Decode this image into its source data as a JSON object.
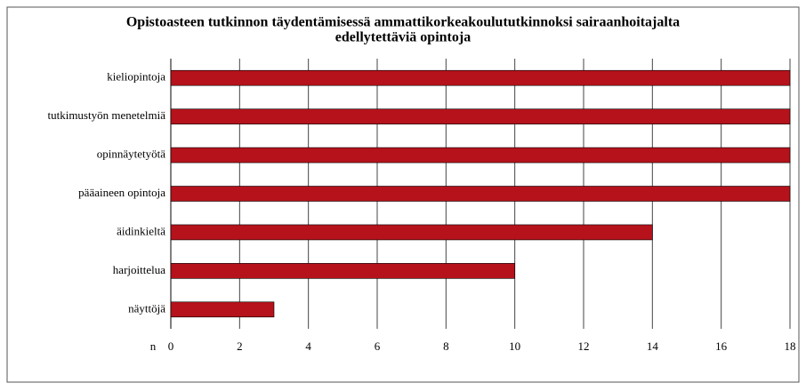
{
  "chart_data": {
    "type": "bar",
    "title": [
      "Opistoasteen tutkinnon täydentämisessä ammattikorkeakoulututkinnoksi sairaanhoitajalta",
      "edellytettäviä opintoja"
    ],
    "xlabel": "n",
    "categories": [
      "kieliopintoja",
      "tutkimustyön menetelmiä",
      "opinnäytetyötä",
      "pääaineen opintoja",
      "äidinkieltä",
      "harjoittelua",
      "näyttöjä"
    ],
    "values": [
      18,
      18,
      18,
      18,
      14,
      10,
      3
    ],
    "color": "#b5121b",
    "xlim": [
      0,
      18
    ],
    "xticks": [
      0,
      2,
      4,
      6,
      8,
      10,
      12,
      14,
      16,
      18
    ],
    "grid": true
  }
}
